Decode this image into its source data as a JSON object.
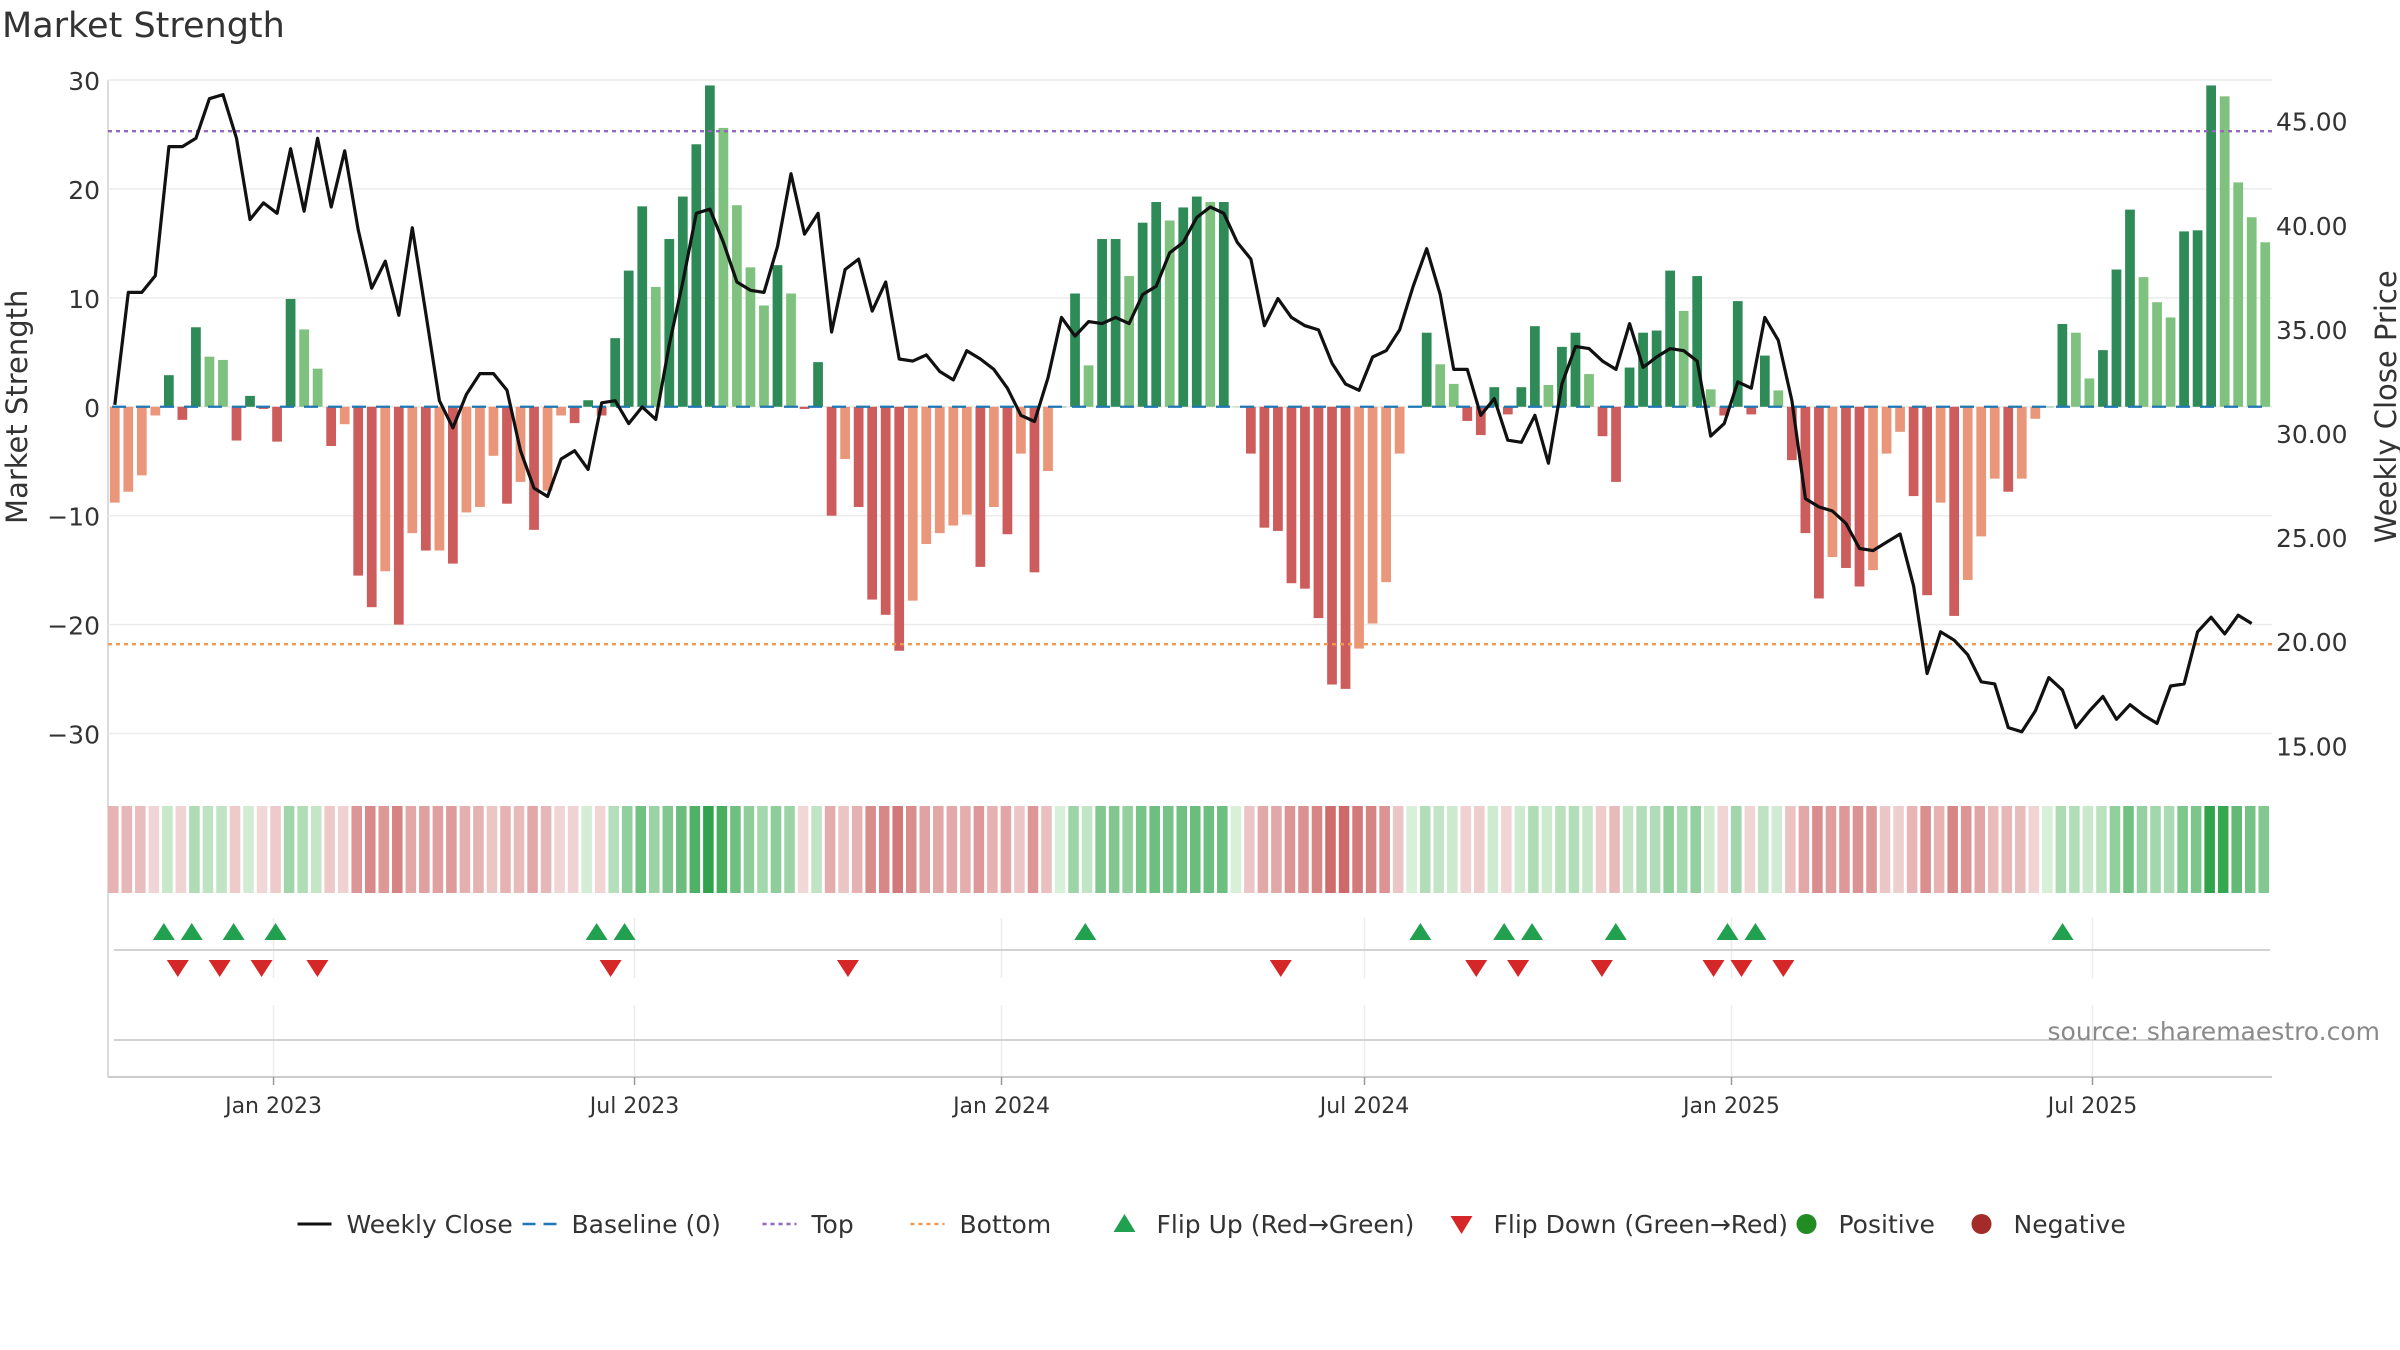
{
  "chart_data": {
    "type": "bar",
    "title": "Market Strength",
    "ylabel_left": "Market Strength",
    "ylabel_right": "Weekly Close Price",
    "ylim_left": [
      -35,
      30
    ],
    "ylim_right": [
      13.0,
      47.0
    ],
    "yticks_left": [
      30,
      20,
      10,
      0,
      -10,
      -20,
      -30
    ],
    "ytick_labels_left": [
      "30",
      "20",
      "10",
      "0",
      "−10",
      "−20",
      "−30"
    ],
    "yticks_right": [
      45,
      40,
      35,
      30,
      25,
      20,
      15
    ],
    "ytick_labels_right": [
      "45.00",
      "40.00",
      "35.00",
      "30.00",
      "25.00",
      "20.00",
      "15.00"
    ],
    "top_level": 25.3,
    "bottom_level": -21.8,
    "x_start": "2022-10-10",
    "x_end": "2025-09-29",
    "xticks": [
      {
        "date": "2023-01-01",
        "label": "Jan 2023"
      },
      {
        "date": "2023-07-01",
        "label": "Jul 2023"
      },
      {
        "date": "2024-01-01",
        "label": "Jan 2024"
      },
      {
        "date": "2024-07-01",
        "label": "Jul 2024"
      },
      {
        "date": "2025-01-01",
        "label": "Jan 2025"
      },
      {
        "date": "2025-07-01",
        "label": "Jul 2025"
      }
    ],
    "strength": [
      -8.8,
      -7.8,
      -6.3,
      -0.8,
      2.9,
      -1.2,
      7.3,
      4.6,
      4.3,
      -3.1,
      1.0,
      -0.2,
      -3.2,
      9.9,
      7.1,
      3.5,
      -3.6,
      -1.6,
      -15.5,
      -18.4,
      -15.1,
      -20.0,
      -11.6,
      -13.2,
      -13.2,
      -14.4,
      -9.7,
      -9.2,
      -4.5,
      -8.9,
      -6.9,
      -11.3,
      -7.7,
      -0.8,
      -1.5,
      0.6,
      -0.8,
      6.3,
      12.5,
      18.4,
      11.0,
      15.4,
      19.3,
      24.1,
      29.5,
      25.6,
      18.5,
      12.8,
      9.3,
      13.0,
      10.4,
      -0.2,
      4.1,
      -10.0,
      -4.8,
      -9.2,
      -17.7,
      -19.1,
      -22.4,
      -17.8,
      -12.6,
      -11.6,
      -10.9,
      -9.9,
      -14.7,
      -9.2,
      -11.7,
      -4.3,
      -15.2,
      -5.9,
      0.0,
      10.4,
      3.8,
      15.4,
      15.4,
      12.0,
      16.9,
      18.8,
      17.1,
      18.3,
      19.3,
      18.8,
      18.8,
      0.0,
      -4.3,
      -11.1,
      -11.4,
      -16.2,
      -16.7,
      -19.4,
      -25.5,
      -25.9,
      -22.2,
      -19.9,
      -16.1,
      -4.3,
      0.0,
      6.8,
      3.9,
      2.1,
      -1.3,
      -2.6,
      1.8,
      -0.7,
      1.8,
      7.4,
      2.0,
      5.5,
      6.8,
      3.0,
      -2.7,
      -6.9,
      3.6,
      6.8,
      7.0,
      12.5,
      8.8,
      12.0,
      1.6,
      -0.8,
      9.7,
      -0.7,
      4.7,
      1.5,
      -4.9,
      -11.6,
      -17.6,
      -13.8,
      -14.8,
      -16.5,
      -15.0,
      -4.3,
      -2.3,
      -8.2,
      -17.3,
      -8.8,
      -19.2,
      -15.9,
      -11.9,
      -6.6,
      -7.8,
      -6.6,
      -1.1,
      0.0,
      7.6,
      6.8,
      2.6,
      5.2,
      12.6,
      18.1,
      11.9,
      9.6,
      8.2,
      16.1,
      16.2,
      29.5,
      28.5,
      20.6,
      17.4,
      15.1
    ],
    "weekly_close": [
      31.4,
      36.8,
      36.8,
      37.6,
      43.8,
      43.8,
      44.2,
      46.1,
      46.3,
      44.2,
      40.3,
      41.1,
      40.6,
      43.7,
      40.7,
      44.2,
      40.9,
      43.6,
      39.8,
      37.0,
      38.3,
      35.7,
      39.9,
      35.8,
      31.6,
      30.3,
      31.9,
      32.9,
      32.9,
      32.1,
      29.2,
      27.4,
      27.0,
      28.8,
      29.2,
      28.3,
      31.5,
      31.6,
      30.5,
      31.3,
      30.7,
      34.3,
      37.3,
      40.6,
      40.8,
      39.2,
      37.3,
      36.9,
      36.8,
      39.0,
      42.5,
      39.6,
      40.6,
      34.9,
      37.9,
      38.4,
      35.9,
      37.3,
      33.6,
      33.5,
      33.8,
      33.0,
      32.6,
      34.0,
      33.6,
      33.1,
      32.2,
      30.9,
      30.6,
      32.7,
      35.6,
      34.7,
      35.4,
      35.3,
      35.6,
      35.3,
      36.7,
      37.1,
      38.7,
      39.2,
      40.4,
      40.9,
      40.6,
      39.2,
      38.4,
      35.2,
      36.5,
      35.6,
      35.2,
      35.0,
      33.4,
      32.4,
      32.1,
      33.7,
      34.0,
      35.0,
      37.1,
      38.9,
      36.7,
      33.1,
      33.1,
      30.9,
      31.7,
      29.7,
      29.6,
      30.9,
      28.6,
      32.4,
      34.2,
      34.1,
      33.5,
      33.1,
      35.3,
      33.2,
      33.7,
      34.1,
      34.0,
      33.5,
      29.9,
      30.5,
      32.5,
      32.2,
      35.6,
      34.5,
      31.6,
      26.9,
      26.5,
      26.3,
      25.7,
      24.5,
      24.4,
      24.8,
      25.2,
      22.7,
      18.5,
      20.5,
      20.1,
      19.4,
      18.1,
      18.0,
      15.9,
      15.7,
      16.7,
      18.3,
      17.7,
      15.9,
      16.7,
      17.4,
      16.3,
      17.0,
      16.5,
      16.1,
      17.9,
      18.0,
      20.5,
      21.2,
      20.4,
      21.3,
      20.9
    ],
    "flip_up_dates": [
      "2022-11-07",
      "2022-11-21",
      "2022-12-12",
      "2023-01-02",
      "2023-06-12",
      "2023-06-26",
      "2024-02-12",
      "2024-07-29",
      "2024-09-09",
      "2024-09-23",
      "2024-11-04",
      "2024-12-30",
      "2025-01-13",
      "2025-06-16"
    ],
    "flip_down_dates": [
      "2022-11-14",
      "2022-12-05",
      "2022-12-26",
      "2023-01-23",
      "2023-06-19",
      "2023-10-16",
      "2024-05-20",
      "2024-08-26",
      "2024-09-16",
      "2024-10-28",
      "2024-12-23",
      "2025-01-06",
      "2025-01-27"
    ],
    "legend": [
      {
        "label": "Weekly Close",
        "kind": "solid-line",
        "color": "#111111"
      },
      {
        "label": "Baseline (0)",
        "kind": "dashed-line",
        "color": "#1f77b4"
      },
      {
        "label": "Top",
        "kind": "dotted-line",
        "color": "#9467bd"
      },
      {
        "label": "Bottom",
        "kind": "dotted-line",
        "color": "#ee9a52"
      },
      {
        "label": "Flip Up (Red→Green)",
        "kind": "triangle-up",
        "color": "#21a050"
      },
      {
        "label": "Flip Down (Green→Red)",
        "kind": "triangle-down",
        "color": "#d62728"
      },
      {
        "label": "Positive",
        "kind": "dot",
        "color": "#228b22"
      },
      {
        "label": "Negative",
        "kind": "dot",
        "color": "#a52a2a"
      }
    ],
    "source": "source: sharemaestro.com"
  },
  "colors": {
    "pos_dark": "#2e8b57",
    "pos_light": "#7fc17f",
    "neg_dark": "#cd5c5c",
    "neg_light": "#e9967a",
    "line": "#111111",
    "baseline": "#1f77b4",
    "top": "#9467bd",
    "bottom": "#ee9a52",
    "flip_up": "#21a050",
    "flip_down": "#d62728"
  }
}
